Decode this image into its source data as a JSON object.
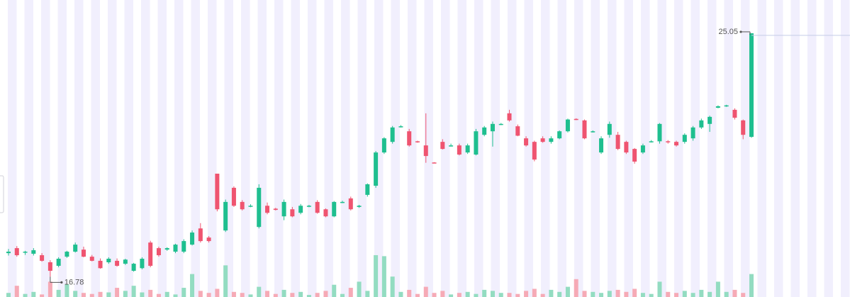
{
  "chart_data": {
    "type": "candlestick",
    "ylim": [
      16.09,
      26.18
    ],
    "volume_lim": [
      0,
      100
    ],
    "up_color": "#1fbf8f",
    "down_color": "#ef5470",
    "up_volume_color": "#93dcc1",
    "down_volume_color": "#f6aab6",
    "max_marker": 25.05,
    "min_marker": 16.78,
    "candles": [
      [
        17.58,
        17.72,
        17.5,
        17.63
      ],
      [
        17.75,
        17.82,
        17.46,
        17.51
      ],
      [
        17.6,
        17.66,
        17.52,
        17.63
      ],
      [
        17.56,
        17.75,
        17.5,
        17.68
      ],
      [
        17.51,
        17.58,
        17.29,
        17.32
      ],
      [
        17.27,
        17.34,
        16.78,
        16.98
      ],
      [
        17.15,
        17.44,
        17.1,
        17.39
      ],
      [
        17.46,
        17.66,
        17.42,
        17.63
      ],
      [
        17.63,
        17.94,
        17.6,
        17.87
      ],
      [
        17.7,
        17.8,
        17.44,
        17.46
      ],
      [
        17.46,
        17.52,
        17.3,
        17.32
      ],
      [
        17.32,
        17.4,
        17.05,
        17.07
      ],
      [
        17.27,
        17.44,
        17.22,
        17.39
      ],
      [
        17.32,
        17.4,
        17.12,
        17.15
      ],
      [
        17.22,
        17.39,
        17.18,
        17.36
      ],
      [
        16.98,
        17.25,
        16.95,
        17.22
      ],
      [
        17.07,
        17.44,
        17.03,
        17.39
      ],
      [
        17.94,
        18.0,
        17.1,
        17.15
      ],
      [
        17.75,
        17.8,
        17.46,
        17.51
      ],
      [
        17.7,
        17.78,
        17.66,
        17.75
      ],
      [
        17.63,
        17.9,
        17.58,
        17.87
      ],
      [
        17.63,
        18.05,
        17.58,
        17.99
      ],
      [
        17.87,
        18.35,
        17.84,
        18.28
      ],
      [
        18.42,
        18.6,
        17.94,
        17.99
      ],
      [
        18.11,
        18.16,
        17.94,
        17.99
      ],
      [
        20.28,
        20.28,
        19.0,
        19.07
      ],
      [
        18.35,
        19.4,
        18.3,
        19.32
      ],
      [
        19.8,
        19.85,
        19.15,
        19.19
      ],
      [
        19.32,
        19.38,
        19.03,
        19.07
      ],
      [
        19.17,
        19.24,
        19.14,
        19.19
      ],
      [
        18.47,
        19.92,
        18.42,
        19.8
      ],
      [
        19.19,
        19.3,
        18.9,
        18.95
      ],
      [
        19.09,
        19.12,
        19.03,
        19.05
      ],
      [
        18.83,
        19.4,
        18.7,
        19.32
      ],
      [
        19.07,
        19.15,
        18.8,
        18.83
      ],
      [
        18.95,
        19.25,
        18.9,
        19.19
      ],
      [
        19.17,
        19.22,
        19.14,
        19.19
      ],
      [
        19.32,
        19.38,
        18.92,
        18.95
      ],
      [
        19.07,
        19.1,
        18.8,
        18.83
      ],
      [
        18.83,
        19.35,
        18.8,
        19.32
      ],
      [
        19.3,
        19.36,
        19.28,
        19.32
      ],
      [
        19.44,
        19.5,
        19.03,
        19.07
      ],
      [
        19.15,
        19.22,
        19.12,
        19.19
      ],
      [
        19.56,
        19.95,
        19.5,
        19.92
      ],
      [
        19.87,
        21.05,
        19.8,
        21.0
      ],
      [
        21.0,
        21.52,
        20.95,
        21.48
      ],
      [
        21.36,
        21.9,
        21.3,
        21.85
      ],
      [
        21.87,
        21.93,
        21.85,
        21.89
      ],
      [
        21.72,
        21.8,
        21.2,
        21.24
      ],
      [
        21.38,
        21.4,
        21.33,
        21.36
      ],
      [
        21.24,
        22.33,
        20.65,
        20.88
      ],
      [
        20.66,
        20.67,
        20.63,
        20.64
      ],
      [
        21.36,
        21.45,
        21.1,
        21.12
      ],
      [
        21.22,
        21.3,
        21.2,
        21.24
      ],
      [
        21.24,
        21.3,
        20.9,
        20.93
      ],
      [
        21.0,
        21.3,
        20.95,
        21.24
      ],
      [
        20.93,
        21.8,
        20.9,
        21.72
      ],
      [
        21.6,
        21.9,
        21.55,
        21.85
      ],
      [
        21.72,
        22.05,
        21.2,
        21.97
      ],
      [
        21.95,
        22.0,
        21.93,
        21.97
      ],
      [
        22.33,
        22.45,
        22.05,
        22.09
      ],
      [
        21.89,
        21.95,
        21.55,
        21.57
      ],
      [
        21.48,
        21.55,
        21.2,
        21.24
      ],
      [
        21.36,
        21.4,
        20.7,
        20.76
      ],
      [
        21.48,
        21.55,
        21.33,
        21.36
      ],
      [
        21.36,
        21.55,
        21.3,
        21.48
      ],
      [
        21.48,
        21.75,
        21.45,
        21.72
      ],
      [
        21.72,
        22.15,
        21.68,
        22.12
      ],
      [
        22.14,
        22.16,
        22.1,
        22.12
      ],
      [
        22.09,
        22.12,
        21.45,
        21.48
      ],
      [
        21.7,
        21.75,
        21.68,
        21.72
      ],
      [
        21.0,
        21.55,
        20.95,
        21.48
      ],
      [
        21.6,
        22.05,
        21.5,
        21.97
      ],
      [
        21.6,
        21.7,
        21.08,
        21.12
      ],
      [
        21.36,
        21.4,
        20.95,
        21.0
      ],
      [
        21.12,
        21.15,
        20.62,
        20.69
      ],
      [
        21.0,
        21.3,
        20.95,
        21.24
      ],
      [
        21.36,
        21.42,
        21.34,
        21.38
      ],
      [
        21.38,
        22.0,
        21.3,
        21.97
      ],
      [
        21.38,
        21.42,
        21.3,
        21.36
      ],
      [
        21.36,
        21.4,
        21.2,
        21.24
      ],
      [
        21.36,
        21.65,
        21.3,
        21.6
      ],
      [
        21.48,
        21.9,
        21.4,
        21.85
      ],
      [
        21.85,
        22.15,
        21.8,
        22.09
      ],
      [
        21.97,
        22.25,
        21.7,
        22.21
      ],
      [
        22.52,
        22.6,
        22.5,
        22.57
      ],
      [
        22.57,
        22.62,
        22.55,
        22.6
      ],
      [
        22.45,
        22.5,
        22.12,
        22.18
      ],
      [
        22.09,
        22.12,
        21.45,
        21.6
      ],
      [
        21.53,
        25.05,
        21.5,
        25.05
      ]
    ],
    "volumes": [
      8,
      22,
      6,
      10,
      5,
      30,
      14,
      25,
      12,
      8,
      6,
      10,
      9,
      18,
      12,
      22,
      9,
      14,
      6,
      10,
      5,
      18,
      45,
      12,
      8,
      16,
      62,
      10,
      8,
      5,
      20,
      12,
      6,
      14,
      8,
      10,
      4,
      8,
      12,
      24,
      6,
      18,
      30,
      12,
      82,
      80,
      40,
      10,
      14,
      6,
      20,
      8,
      12,
      5,
      8,
      10,
      6,
      14,
      12,
      8,
      8,
      6,
      12,
      16,
      6,
      14,
      10,
      20,
      35,
      12,
      10,
      8,
      12,
      14,
      10,
      16,
      8,
      6,
      30,
      10,
      8,
      12,
      8,
      14,
      10,
      30,
      10,
      14,
      8,
      45
    ]
  }
}
